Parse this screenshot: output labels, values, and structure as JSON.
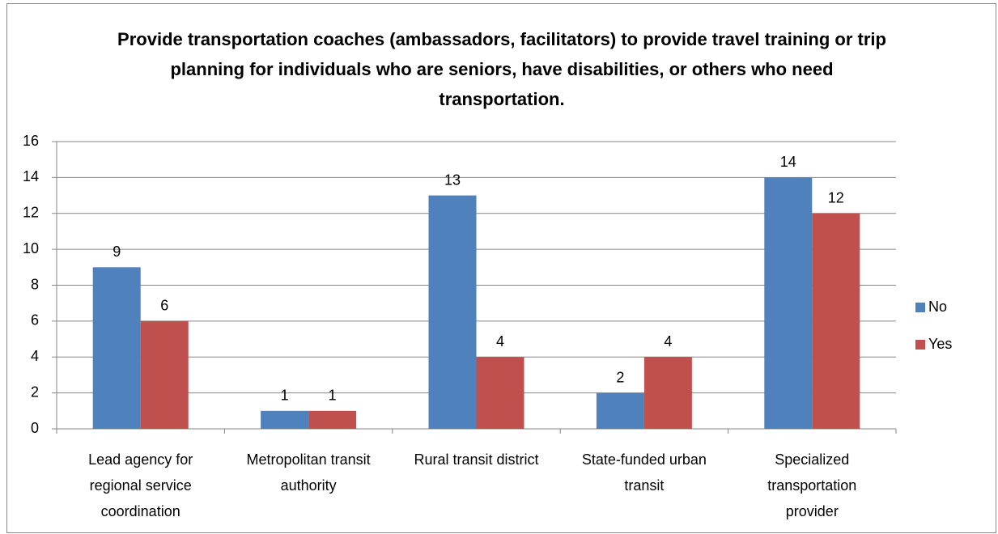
{
  "chart_data": {
    "type": "bar",
    "title": "Provide transportation coaches (ambassadors, facilitators) to provide travel training or trip planning for individuals who are seniors, have disabilities, or others who need transportation.",
    "categories": [
      "Lead agency for regional service coordination",
      "Metropolitan transit authority",
      "Rural transit district",
      "State-funded urban transit",
      "Specialized transportation provider"
    ],
    "series": [
      {
        "name": "No",
        "color": "#4f81bd",
        "values": [
          9,
          1,
          13,
          2,
          14
        ]
      },
      {
        "name": "Yes",
        "color": "#c0504d",
        "values": [
          6,
          1,
          4,
          4,
          12
        ]
      }
    ],
    "ylim": [
      0,
      16
    ],
    "yticks": [
      0,
      2,
      4,
      6,
      8,
      10,
      12,
      14,
      16
    ],
    "grid": true,
    "legend": "right"
  }
}
